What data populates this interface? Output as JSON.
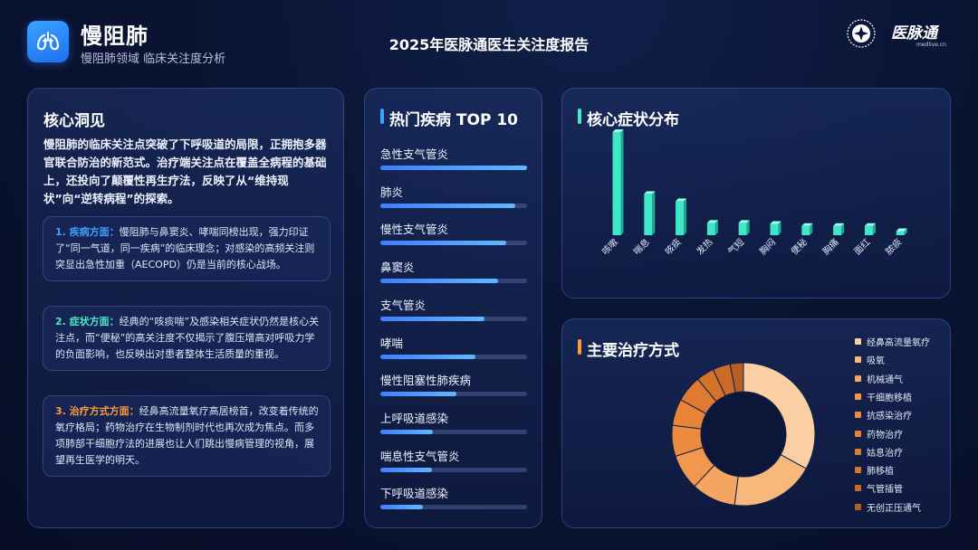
{
  "header": {
    "app_title": "慢阻肺",
    "app_subtitle": "慢阻肺领域 临床关注度分析",
    "report_title": "2025年医脉通医生关注度报告",
    "brand_name": "医脉通",
    "brand_url": "medlive.cn"
  },
  "insight": {
    "title": "核心洞见",
    "summary": "慢阻肺的临床关注点突破了下呼吸道的局限，正拥抱多器官联合防治的新范式。治疗端关注点在覆盖全病程的基础上，还投向了颠覆性再生疗法，反映了从“维持现状”向“逆转病程”的探索。",
    "cards": [
      {
        "head": "1. 疾病方面：",
        "body": "慢阻肺与鼻窦炎、哮喘同榜出现，强力印证了“同一气道，同一疾病”的临床理念；对感染的高频关注则突显出急性加重（AECOPD）仍是当前的核心战场。"
      },
      {
        "head": "2. 症状方面：",
        "body": "经典的“咳痰喘”及感染相关症状仍然是核心关注点，而“便秘”的高关注度不仅揭示了腹压增高对呼吸力学的负面影响，也反映出对患者整体生活质量的重视。"
      },
      {
        "head": "3. 治疗方式方面：",
        "body": "经鼻高流量氧疗高居榜首，改变着传统的氧疗格局；药物治疗在生物制剂时代也再次成为焦点。而多项肺部干细胞疗法的进展也让人们跳出慢病管理的视角，展望再生医学的明天。"
      }
    ]
  },
  "chart_data": [
    {
      "type": "bar",
      "orientation": "horizontal",
      "title": "热门疾病 TOP 10",
      "categories": [
        "急性支气管炎",
        "肺炎",
        "慢性支气管炎",
        "鼻窦炎",
        "支气管炎",
        "哮喘",
        "慢性阻塞性肺疾病",
        "上呼吸道感染",
        "喘息性支气管炎",
        "下呼吸道感染"
      ],
      "values": [
        100,
        92,
        86,
        80,
        71,
        65,
        52,
        36,
        35,
        29
      ],
      "ylim": [
        0,
        100
      ]
    },
    {
      "type": "bar",
      "title": "核心症状分布",
      "categories": [
        "咳嗽",
        "喘息",
        "咳痰",
        "发热",
        "气短",
        "胸闷",
        "便秘",
        "胸痛",
        "面红",
        "脓痰"
      ],
      "values": [
        100,
        40,
        33,
        12,
        12,
        11,
        9,
        9,
        9,
        4
      ],
      "ylim": [
        0,
        100
      ]
    },
    {
      "type": "pie",
      "style": "donut",
      "title": "主要治疗方式",
      "categories": [
        "经鼻高流量氧疗",
        "吸氧",
        "机械通气",
        "干细胞移植",
        "抗感染治疗",
        "药物治疗",
        "姑息治疗",
        "肺移植",
        "气管插管",
        "无创正压通气"
      ],
      "values": [
        33,
        19,
        10,
        8,
        7,
        6,
        6,
        4,
        4,
        3
      ],
      "colors": [
        "#f9cfa3",
        "#f7b87c",
        "#f4a561",
        "#f1974f",
        "#ec8b3f",
        "#e88437",
        "#df7b30",
        "#d6732b",
        "#c96a27",
        "#b65f23"
      ],
      "legend_position": "right"
    }
  ],
  "colors": {
    "accent_blue": "#3da0ff",
    "accent_teal": "#4ee8c6",
    "accent_orange": "#ff9a3c"
  },
  "icons": {
    "app_icon": "lungs-icon",
    "brand_mark": "emblem-icon"
  }
}
